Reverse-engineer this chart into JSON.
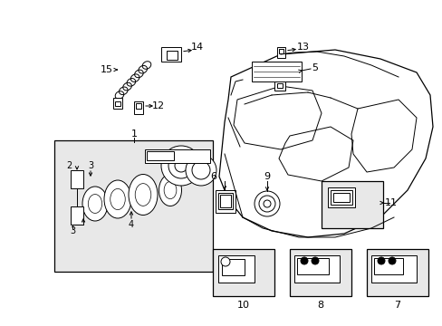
{
  "background_color": "#ffffff",
  "figsize": [
    4.89,
    3.6
  ],
  "dpi": 100,
  "line_color": "#000000",
  "text_color": "#000000",
  "gray_fill": "#e8e8e8",
  "white_fill": "#ffffff"
}
